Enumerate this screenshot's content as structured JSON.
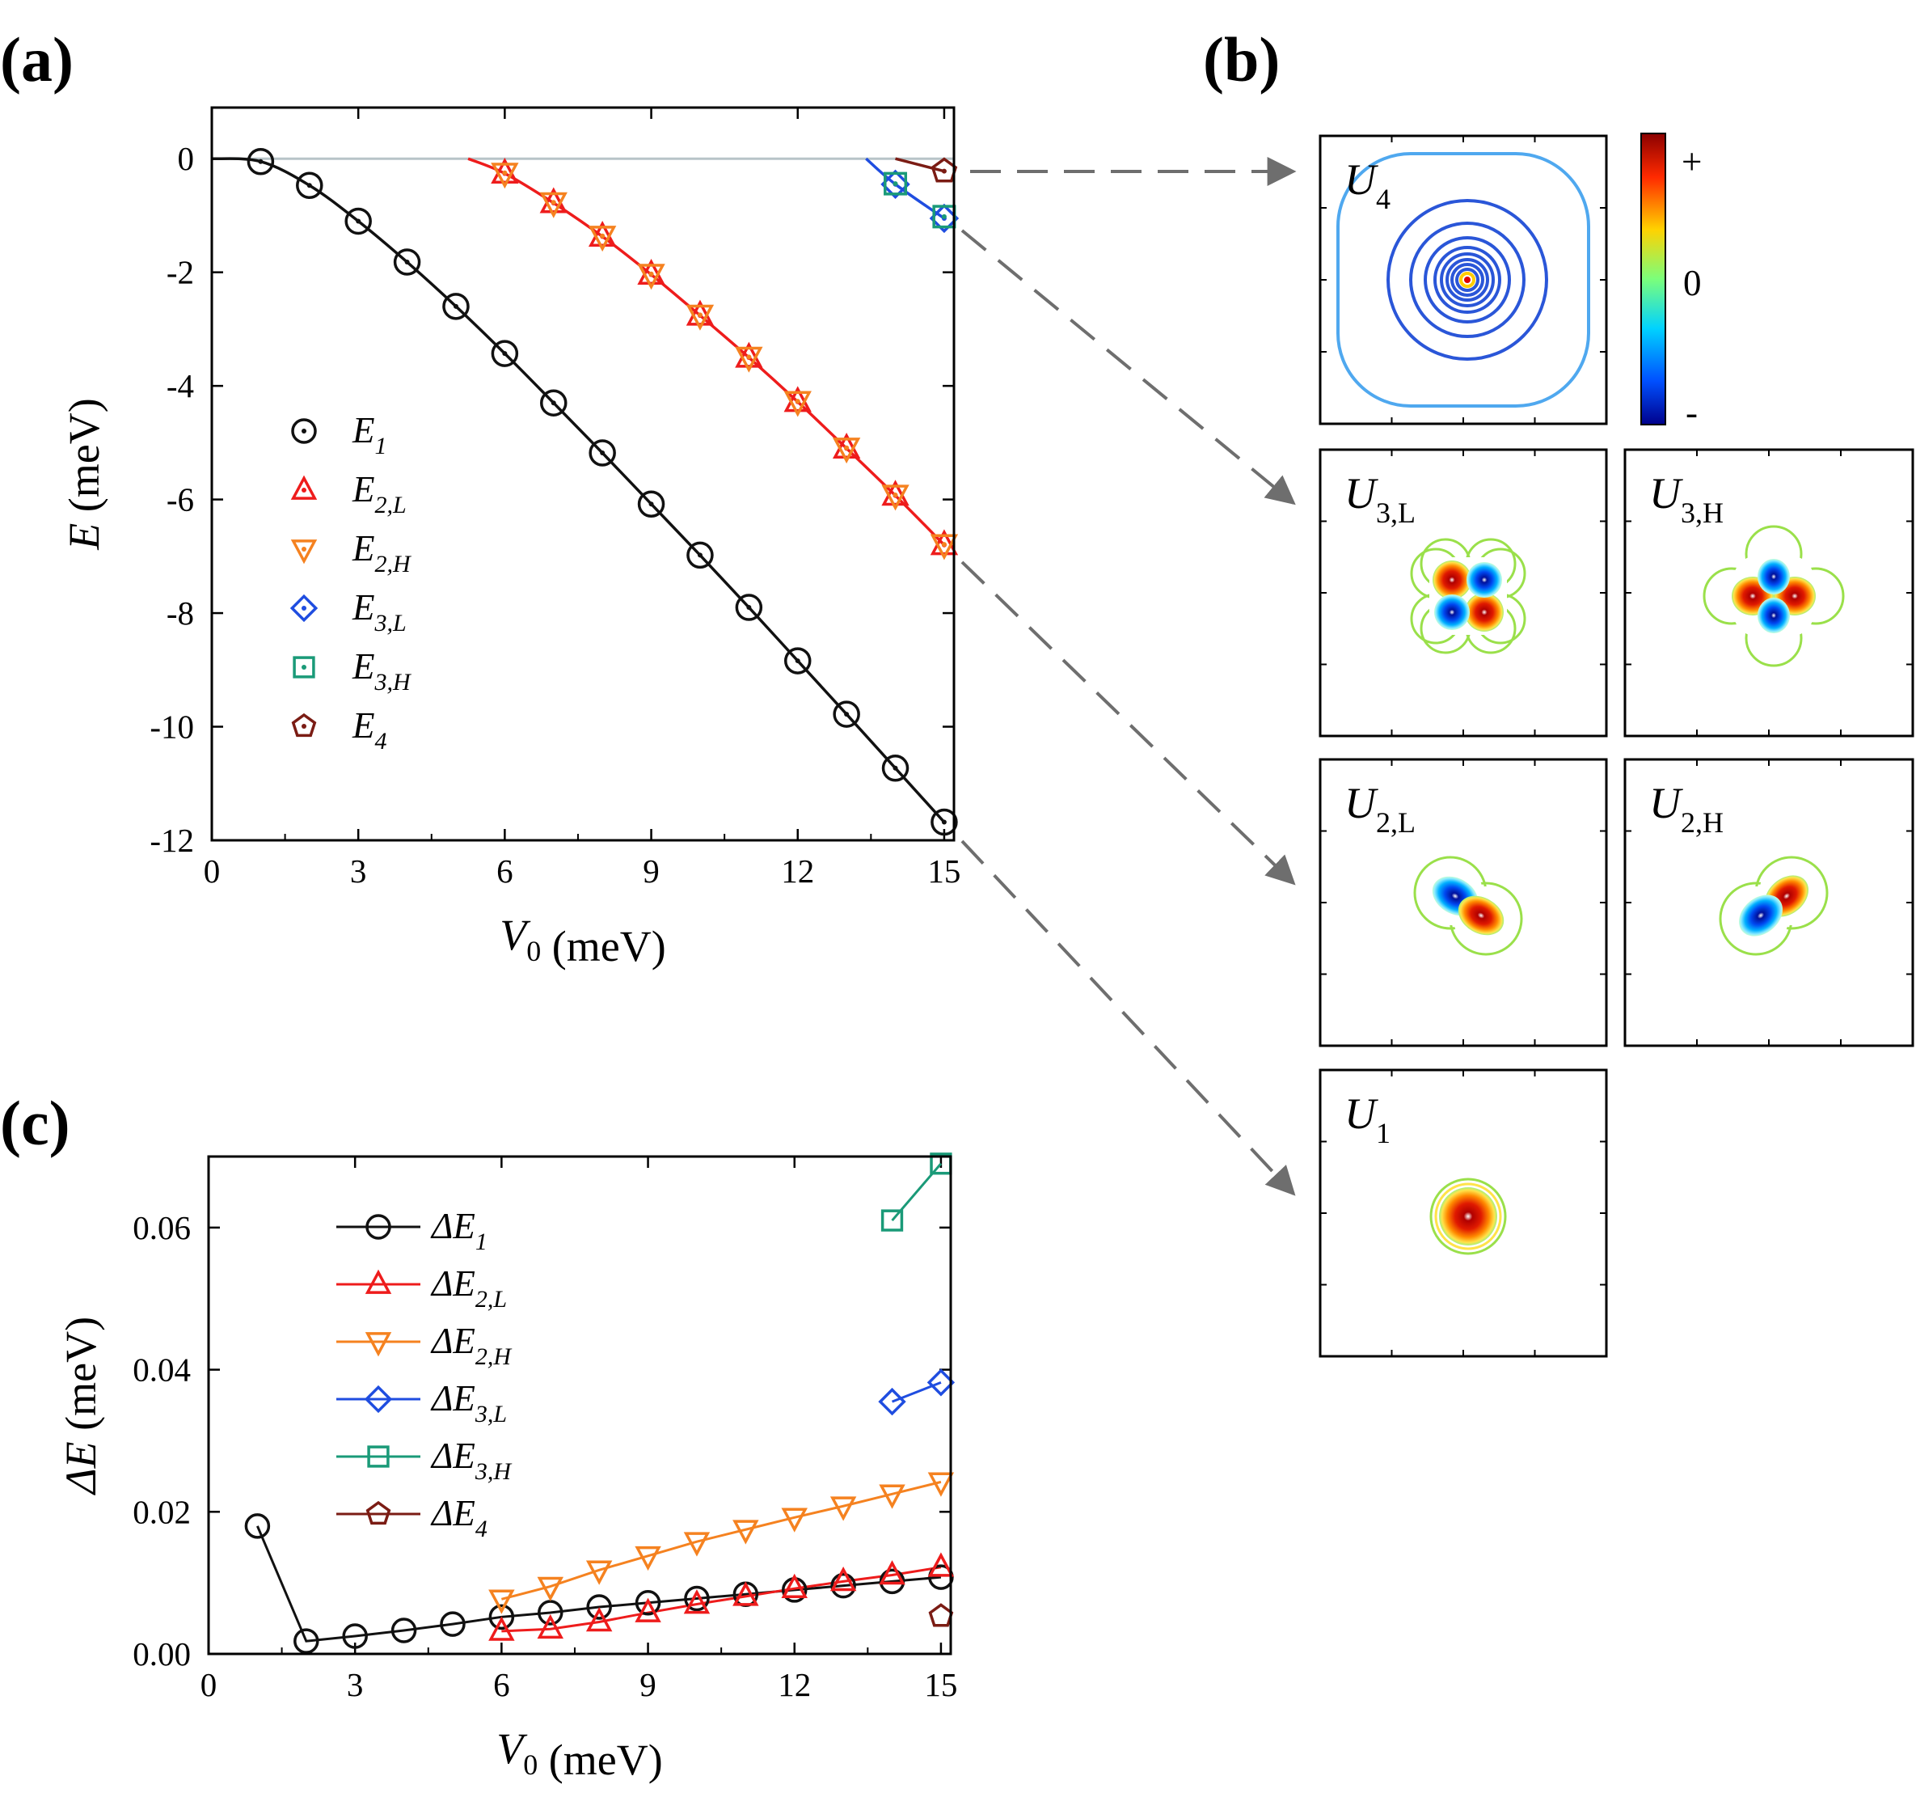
{
  "panel_labels": {
    "a": "(a)",
    "b": "(b)",
    "c": "(c)"
  },
  "chart_data": [
    {
      "id": "a",
      "type": "scatter",
      "xlabel": {
        "main": "V",
        "sub": "0",
        "unit": " (meV)"
      },
      "ylabel": {
        "main": "E",
        "unit": " (meV)"
      },
      "xlim": [
        0,
        15.2
      ],
      "ylim": [
        -12,
        0.9
      ],
      "xticks": [
        0,
        3,
        6,
        9,
        12,
        15
      ],
      "yticks": [
        0,
        -2,
        -4,
        -6,
        -8,
        -10,
        -12
      ],
      "xtick_labels": [
        "0",
        "3",
        "6",
        "9",
        "12",
        "15"
      ],
      "ytick_labels": [
        "0",
        "-2",
        "-4",
        "-6",
        "-8",
        "-10",
        "-12"
      ],
      "zero_line_color": "#b8c4c8",
      "legend_position": "center-left",
      "series": [
        {
          "name": "E1",
          "label_main": "E",
          "label_sub": "1",
          "marker": "circle",
          "color": "#111111",
          "curve_from": 0,
          "x": [
            1,
            2,
            3,
            4,
            5,
            6,
            7,
            8,
            9,
            10,
            11,
            12,
            13,
            14,
            15
          ],
          "y": [
            -0.05,
            -0.47,
            -1.1,
            -1.82,
            -2.6,
            -3.43,
            -4.3,
            -5.18,
            -6.08,
            -6.98,
            -7.9,
            -8.84,
            -9.78,
            -10.73,
            -11.68
          ]
        },
        {
          "name": "E2,L",
          "label_main": "E",
          "label_sub": "2,L",
          "marker": "triangle-up",
          "color": "#ee1c1c",
          "curve_from": 5.25,
          "x": [
            6,
            7,
            8,
            9,
            10,
            11,
            12,
            13,
            14,
            15
          ],
          "y": [
            -0.26,
            -0.78,
            -1.37,
            -2.04,
            -2.76,
            -3.5,
            -4.28,
            -5.1,
            -5.93,
            -6.8
          ]
        },
        {
          "name": "E2,H",
          "label_main": "E",
          "label_sub": "2,H",
          "marker": "triangle-down",
          "color": "#f58220",
          "curve_from": null,
          "x": [
            6,
            7,
            8,
            9,
            10,
            11,
            12,
            13,
            14,
            15
          ],
          "y": [
            -0.25,
            -0.77,
            -1.36,
            -2.03,
            -2.75,
            -3.49,
            -4.27,
            -5.09,
            -5.92,
            -6.79
          ]
        },
        {
          "name": "E3,L",
          "label_main": "E",
          "label_sub": "3,L",
          "marker": "diamond",
          "color": "#1f4de0",
          "curve_from": 13.4,
          "x": [
            14,
            15
          ],
          "y": [
            -0.45,
            -1.05
          ]
        },
        {
          "name": "E3,H",
          "label_main": "E",
          "label_sub": "3,H",
          "marker": "square",
          "color": "#1a9a78",
          "curve_from": null,
          "x": [
            14,
            15
          ],
          "y": [
            -0.44,
            -1.02
          ]
        },
        {
          "name": "E4",
          "label_main": "E",
          "label_sub": "4",
          "marker": "pentagon",
          "color": "#7b1c14",
          "curve_from": 14.0,
          "x": [
            15
          ],
          "y": [
            -0.22
          ]
        }
      ]
    },
    {
      "id": "c",
      "type": "line",
      "xlabel": {
        "main": "V",
        "sub": "0",
        "unit": " (meV)"
      },
      "ylabel": {
        "main": "ΔE",
        "unit": " (meV)"
      },
      "xlim": [
        0,
        15.2
      ],
      "ylim": [
        0,
        0.07
      ],
      "xticks": [
        0,
        3,
        6,
        9,
        12,
        15
      ],
      "yticks": [
        0,
        0.02,
        0.04,
        0.06
      ],
      "xtick_labels": [
        "0",
        "3",
        "6",
        "9",
        "12",
        "15"
      ],
      "ytick_labels": [
        "0.00",
        "0.02",
        "0.04",
        "0.06"
      ],
      "legend_position": "top-left",
      "series": [
        {
          "name": "ΔE1",
          "label_main": "ΔE",
          "label_sub": "1",
          "marker": "circle",
          "color": "#111111",
          "x": [
            1,
            2,
            3,
            4,
            5,
            6,
            7,
            8,
            9,
            10,
            11,
            12,
            13,
            14,
            15
          ],
          "y": [
            0.018,
            0.0018,
            0.0025,
            0.0033,
            0.0042,
            0.0052,
            0.0058,
            0.0066,
            0.0072,
            0.0078,
            0.0084,
            0.009,
            0.0096,
            0.0102,
            0.0108
          ]
        },
        {
          "name": "ΔE2,L",
          "label_main": "ΔE",
          "label_sub": "2,L",
          "marker": "triangle-up",
          "color": "#ee1c1c",
          "x": [
            6,
            7,
            8,
            9,
            10,
            11,
            12,
            13,
            14,
            15
          ],
          "y": [
            0.0032,
            0.0035,
            0.0045,
            0.0058,
            0.007,
            0.0081,
            0.0092,
            0.0102,
            0.0111,
            0.0122
          ]
        },
        {
          "name": "ΔE2,H",
          "label_main": "ΔE",
          "label_sub": "2,H",
          "marker": "triangle-down",
          "color": "#f58220",
          "x": [
            6,
            7,
            8,
            9,
            10,
            11,
            12,
            13,
            14,
            15
          ],
          "y": [
            0.0077,
            0.0095,
            0.0118,
            0.0138,
            0.0158,
            0.0175,
            0.0192,
            0.0208,
            0.0225,
            0.0242
          ]
        },
        {
          "name": "ΔE3,L",
          "label_main": "ΔE",
          "label_sub": "3,L",
          "marker": "diamond",
          "color": "#1f4de0",
          "x": [
            14,
            15
          ],
          "y": [
            0.0355,
            0.0382
          ]
        },
        {
          "name": "ΔE3,H",
          "label_main": "ΔE",
          "label_sub": "3,H",
          "marker": "square",
          "color": "#1a9a78",
          "x": [
            14,
            15
          ],
          "y": [
            0.061,
            0.069
          ]
        },
        {
          "name": "ΔE4",
          "label_main": "ΔE",
          "label_sub": "4",
          "marker": "pentagon",
          "color": "#7b1c14",
          "x": [
            15
          ],
          "y": [
            0.0053
          ]
        }
      ]
    }
  ],
  "maps": [
    {
      "id": "U4",
      "label_main": "U",
      "label_sub": "4",
      "pattern": "nodal-rings",
      "source_series": "E4"
    },
    {
      "id": "U3L",
      "label_main": "U",
      "label_sub": "3,L",
      "pattern": "quadrupole-diagonal",
      "source_series": "E3,L"
    },
    {
      "id": "U3H",
      "label_main": "U",
      "label_sub": "3,H",
      "pattern": "quadrupole-axial",
      "source_series": "E3,H"
    },
    {
      "id": "U2L",
      "label_main": "U",
      "label_sub": "2,L",
      "pattern": "dipole",
      "source_series": "E2,L"
    },
    {
      "id": "U2H",
      "label_main": "U",
      "label_sub": "2,H",
      "pattern": "dipole",
      "source_series": "E2,H"
    },
    {
      "id": "U1",
      "label_main": "U",
      "label_sub": "1",
      "pattern": "monopole",
      "source_series": "E1"
    }
  ],
  "colorbar": {
    "labels": [
      "+",
      "0",
      "-"
    ],
    "colors": [
      "#8b0000",
      "#ff2a00",
      "#ffd200",
      "#7bff7b",
      "#00d2ff",
      "#0050ff",
      "#00008b"
    ]
  },
  "arrow_color": "#6e6e6e"
}
